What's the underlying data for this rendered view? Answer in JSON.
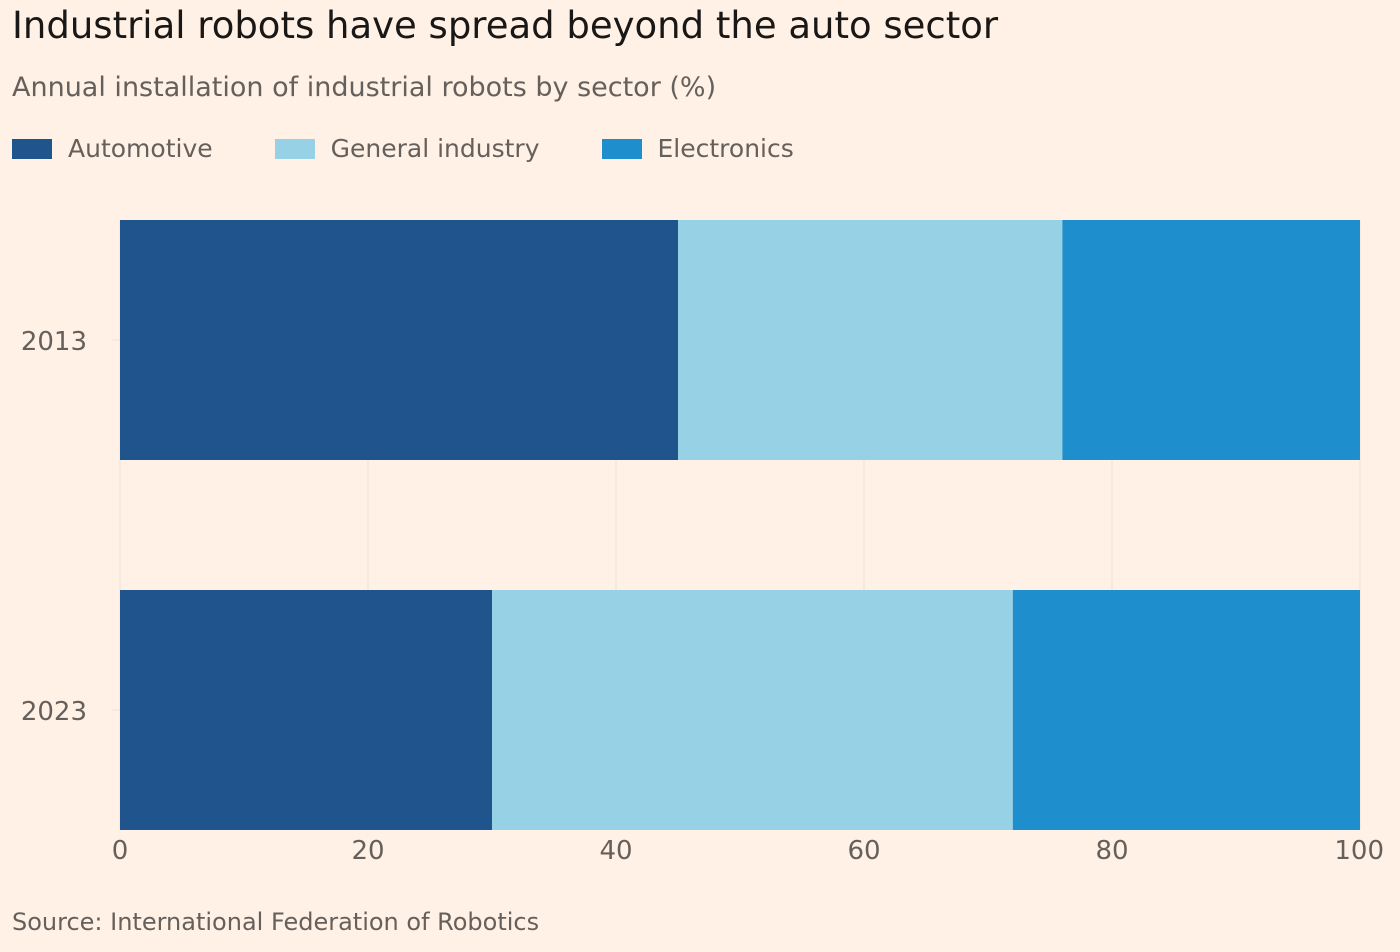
{
  "title": "Industrial robots have spread beyond the auto sector",
  "subtitle": "Annual installation of industrial robots by sector (%)",
  "source": "Source: International Federation of Robotics",
  "colors": {
    "background": "#fff1e5",
    "Automotive": "#1f558c",
    "General industry": "#96d1e6",
    "Electronics": "#1f8ecc",
    "gridline": "#ebe2d9",
    "tick_text": "#66605c"
  },
  "chart_data": {
    "type": "bar",
    "orientation": "horizontal",
    "stacked": true,
    "title": "Industrial robots have spread beyond the auto sector",
    "subtitle": "Annual installation of industrial robots by sector (%)",
    "categories": [
      "2013",
      "2023"
    ],
    "series": [
      {
        "name": "Automotive",
        "values": [
          45,
          30
        ]
      },
      {
        "name": "General industry",
        "values": [
          31,
          42
        ]
      },
      {
        "name": "Electronics",
        "values": [
          24,
          28
        ]
      }
    ],
    "xlim": [
      0,
      100
    ],
    "xticks": [
      0,
      20,
      40,
      60,
      80,
      100
    ],
    "xlabel": "",
    "ylabel": "",
    "grid": true,
    "legend": "top-left"
  }
}
